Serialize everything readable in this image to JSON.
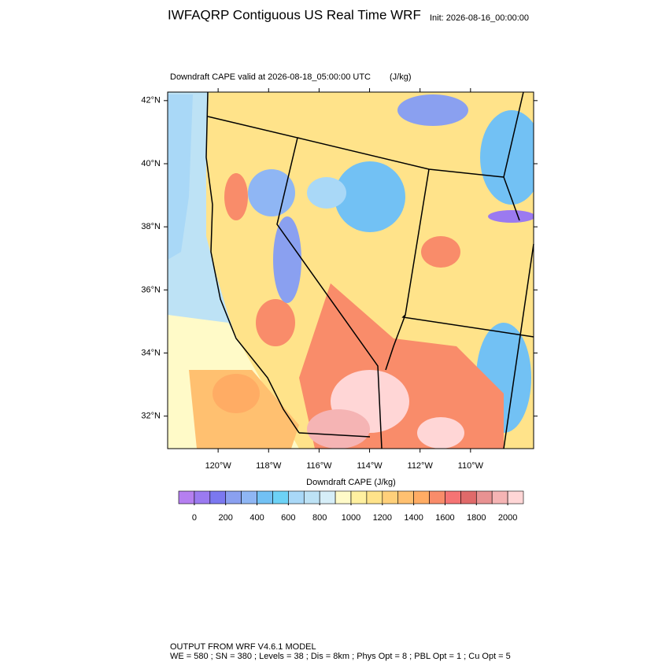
{
  "chart_data": {
    "type": "contour-map",
    "title": "IWFAQRP Contiguous US Real Time WRF",
    "init_label": "Init: 2026-08-16_00:00:00",
    "subtitle": "Downdraft CAPE valid at 2026-08-18_05:00:00 UTC",
    "units": "(J/kg)",
    "xlim": [
      -122,
      -107.5
    ],
    "ylim": [
      30.97,
      42.27
    ],
    "xticks": [
      {
        "value": -120,
        "label": "120°W"
      },
      {
        "value": -118,
        "label": "118°W"
      },
      {
        "value": -116,
        "label": "116°W"
      },
      {
        "value": -114,
        "label": "114°W"
      },
      {
        "value": -112,
        "label": "112°W"
      },
      {
        "value": -110,
        "label": "110°W"
      }
    ],
    "yticks": [
      {
        "value": 32,
        "label": "32°N"
      },
      {
        "value": 34,
        "label": "34°N"
      },
      {
        "value": 36,
        "label": "36°N"
      },
      {
        "value": 38,
        "label": "38°N"
      },
      {
        "value": 40,
        "label": "40°N"
      },
      {
        "value": 42,
        "label": "42°N"
      }
    ],
    "colorbar": {
      "title": "Downdraft CAPE  (J/kg)",
      "range": [
        -100,
        2100
      ],
      "ticks": [
        0,
        200,
        400,
        600,
        800,
        1000,
        1200,
        1400,
        1600,
        1800,
        2000
      ],
      "colors": [
        "#b57ff0",
        "#9b7af0",
        "#7b78f0",
        "#8aa0f0",
        "#8fb6f4",
        "#72c1f4",
        "#6dd2f6",
        "#a9d8f7",
        "#bde2f5",
        "#d6eef8",
        "#fffac8",
        "#fff0a0",
        "#ffe38a",
        "#ffd07a",
        "#ffc070",
        "#ffac64",
        "#f98c6a",
        "#f57474",
        "#e06a6a",
        "#e89292",
        "#f5b4b4",
        "#ffd6d6"
      ]
    },
    "footer": [
      "OUTPUT FROM WRF V4.6.1 MODEL",
      "WE = 580 ; SN = 380 ; Levels = 38 ; Dis = 8km ; Phys Opt = 8 ; PBL Opt = 1 ; Cu Opt = 5"
    ]
  }
}
